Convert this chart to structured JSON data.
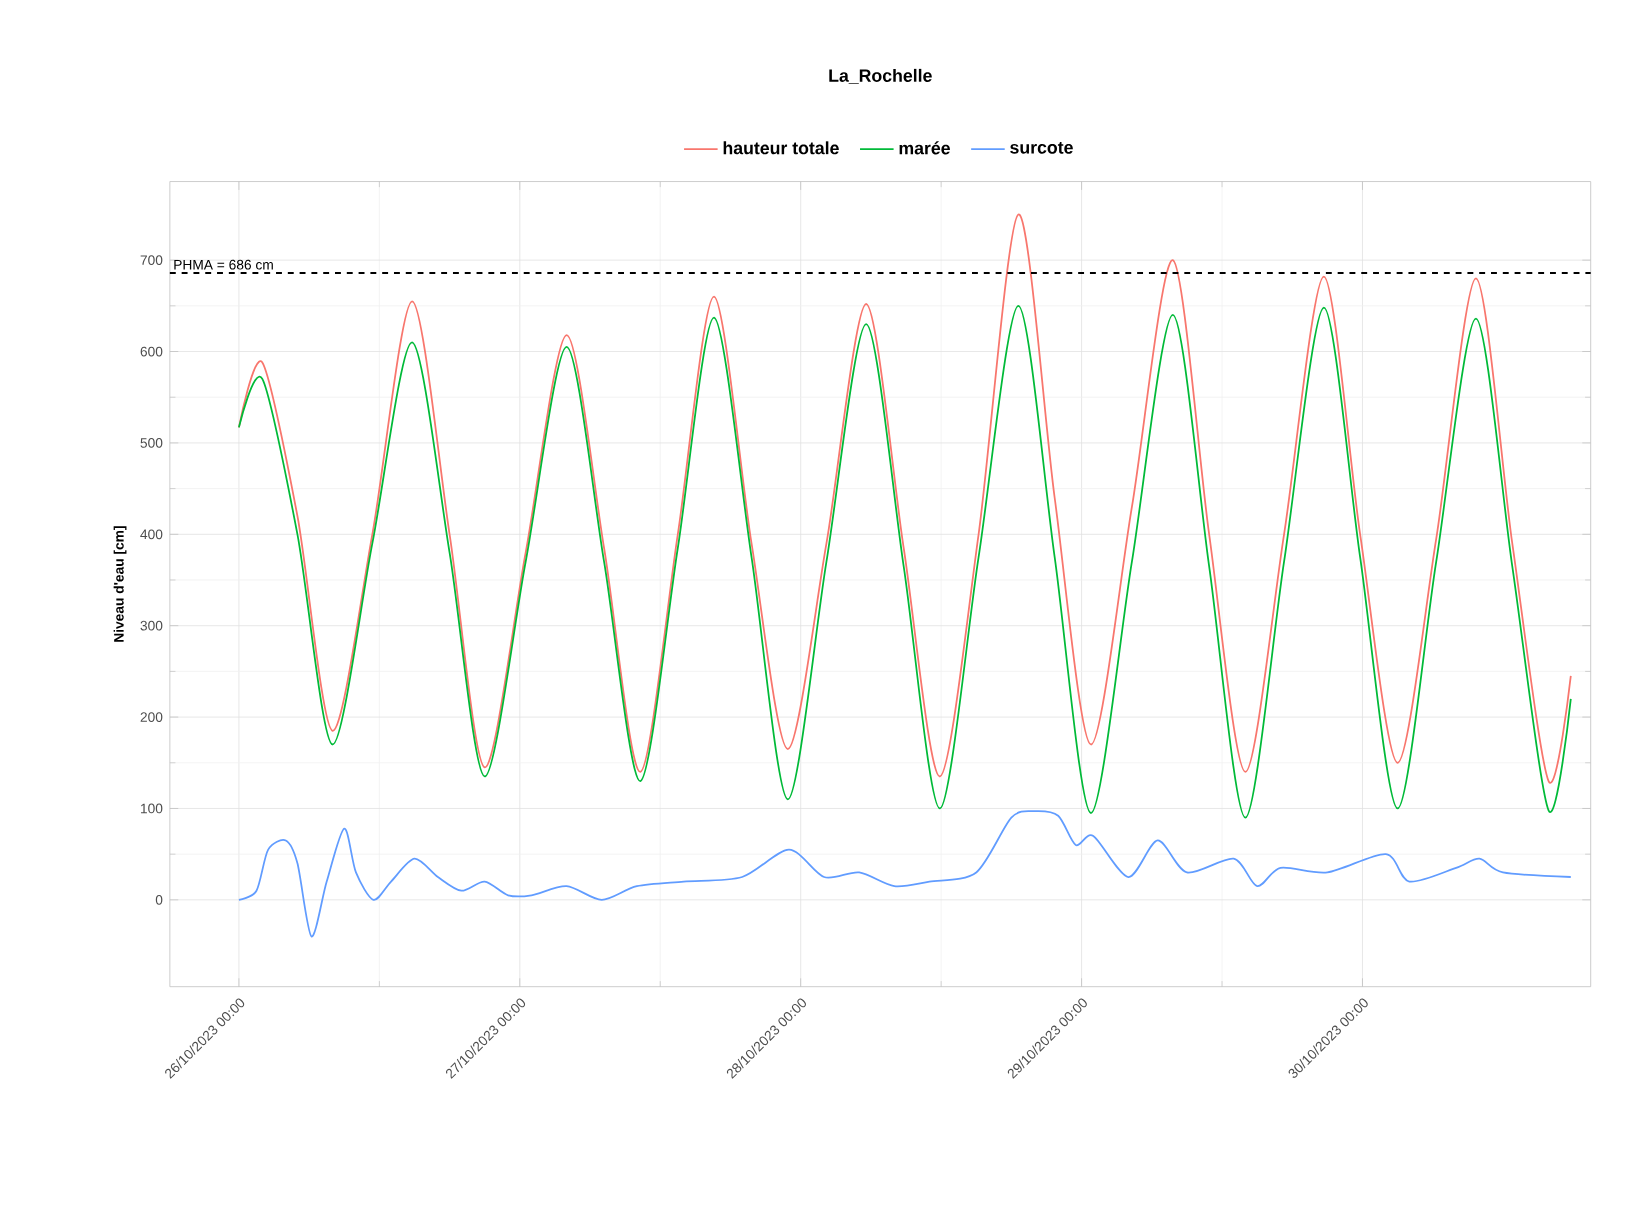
{
  "chart_data": {
    "type": "line",
    "title": "La_Rochelle",
    "ylabel": "Niveau d'eau [cm]",
    "xlim": [
      "2023-10-25T18:06",
      "2023-10-30T19:30"
    ],
    "ylim": [
      -95,
      786
    ],
    "xticks": [
      {
        "value": "2023-10-26T00:00",
        "label": "26/10/2023 00:00"
      },
      {
        "value": "2023-10-27T00:00",
        "label": "27/10/2023 00:00"
      },
      {
        "value": "2023-10-28T00:00",
        "label": "28/10/2023 00:00"
      },
      {
        "value": "2023-10-29T00:00",
        "label": "29/10/2023 00:00"
      },
      {
        "value": "2023-10-30T00:00",
        "label": "30/10/2023 00:00"
      }
    ],
    "yticks": [
      0,
      100,
      200,
      300,
      400,
      500,
      600,
      700
    ],
    "grid": true,
    "legend": "top",
    "marker": "none",
    "line_style": "solid",
    "ref_lines": [
      {
        "axis": "y",
        "value": 686,
        "label": "PHMA = 686 cm",
        "color": "#000000",
        "line_style": "dashed"
      }
    ],
    "series": [
      {
        "name": "hauteur totale",
        "color": "#f8766d",
        "x": [
          "2023-10-26T00:00",
          "2023-10-26T02:00",
          "2023-10-26T05:00",
          "2023-10-26T08:00",
          "2023-10-26T11:24",
          "2023-10-26T14:48",
          "2023-10-26T18:00",
          "2023-10-26T21:00",
          "2023-10-27T00:30",
          "2023-10-27T04:00",
          "2023-10-27T07:12",
          "2023-10-27T10:18",
          "2023-10-27T13:30",
          "2023-10-27T16:36",
          "2023-10-27T19:48",
          "2023-10-27T22:54",
          "2023-10-28T02:12",
          "2023-10-28T05:36",
          "2023-10-28T08:48",
          "2023-10-28T11:54",
          "2023-10-28T15:12",
          "2023-10-28T18:36",
          "2023-10-28T21:42",
          "2023-10-29T00:48",
          "2023-10-29T04:18",
          "2023-10-29T07:48",
          "2023-10-29T10:54",
          "2023-10-29T14:00",
          "2023-10-29T17:18",
          "2023-10-29T20:42",
          "2023-10-29T23:48",
          "2023-10-30T03:00",
          "2023-10-30T06:18",
          "2023-10-30T09:42",
          "2023-10-30T12:48",
          "2023-10-30T15:54",
          "2023-10-30T17:48"
        ],
        "values": [
          517,
          588,
          420,
          185,
          400,
          655,
          400,
          145,
          380,
          618,
          385,
          140,
          400,
          660,
          390,
          165,
          390,
          652,
          385,
          135,
          400,
          750,
          440,
          170,
          430,
          700,
          400,
          140,
          400,
          682,
          400,
          150,
          395,
          680,
          390,
          130,
          245
        ]
      },
      {
        "name": "marée",
        "color": "#00ba38",
        "x": [
          "2023-10-26T00:00",
          "2023-10-26T02:00",
          "2023-10-26T05:00",
          "2023-10-26T08:00",
          "2023-10-26T11:24",
          "2023-10-26T14:48",
          "2023-10-26T18:00",
          "2023-10-26T21:00",
          "2023-10-27T00:30",
          "2023-10-27T04:00",
          "2023-10-27T07:12",
          "2023-10-27T10:18",
          "2023-10-27T13:30",
          "2023-10-27T16:36",
          "2023-10-27T19:48",
          "2023-10-27T22:54",
          "2023-10-28T02:12",
          "2023-10-28T05:36",
          "2023-10-28T08:48",
          "2023-10-28T11:54",
          "2023-10-28T15:12",
          "2023-10-28T18:36",
          "2023-10-28T21:42",
          "2023-10-29T00:48",
          "2023-10-29T04:18",
          "2023-10-29T07:48",
          "2023-10-29T10:54",
          "2023-10-29T14:00",
          "2023-10-29T17:18",
          "2023-10-29T20:42",
          "2023-10-29T23:48",
          "2023-10-30T03:00",
          "2023-10-30T06:18",
          "2023-10-30T09:42",
          "2023-10-30T12:48",
          "2023-10-30T15:54",
          "2023-10-30T17:48"
        ],
        "values": [
          517,
          570,
          400,
          170,
          390,
          610,
          380,
          135,
          370,
          605,
          370,
          130,
          385,
          637,
          375,
          110,
          370,
          630,
          365,
          100,
          375,
          650,
          375,
          95,
          370,
          640,
          365,
          90,
          370,
          648,
          375,
          100,
          370,
          636,
          365,
          98,
          220
        ]
      },
      {
        "name": "surcote",
        "color": "#619cff",
        "x": [
          "2023-10-26T00:00",
          "2023-10-26T01:30",
          "2023-10-26T02:30",
          "2023-10-26T04:00",
          "2023-10-26T05:00",
          "2023-10-26T06:12",
          "2023-10-26T07:30",
          "2023-10-26T09:00",
          "2023-10-26T10:00",
          "2023-10-26T11:30",
          "2023-10-26T13:00",
          "2023-10-26T15:00",
          "2023-10-26T17:00",
          "2023-10-26T19:00",
          "2023-10-26T21:00",
          "2023-10-26T23:00",
          "2023-10-27T01:00",
          "2023-10-27T04:00",
          "2023-10-27T07:00",
          "2023-10-27T10:00",
          "2023-10-27T14:00",
          "2023-10-27T19:00",
          "2023-10-27T23:00",
          "2023-10-28T02:00",
          "2023-10-28T05:00",
          "2023-10-28T08:00",
          "2023-10-28T11:00",
          "2023-10-28T15:00",
          "2023-10-28T18:00",
          "2023-10-28T20:00",
          "2023-10-28T22:00",
          "2023-10-28T23:30",
          "2023-10-29T01:00",
          "2023-10-29T04:00",
          "2023-10-29T06:30",
          "2023-10-29T09:00",
          "2023-10-29T13:00",
          "2023-10-29T15:00",
          "2023-10-29T17:00",
          "2023-10-29T21:00",
          "2023-10-30T02:00",
          "2023-10-30T04:00",
          "2023-10-30T08:00",
          "2023-10-30T10:00",
          "2023-10-30T12:00",
          "2023-10-30T17:48"
        ],
        "values": [
          0,
          10,
          55,
          65,
          40,
          -40,
          20,
          78,
          30,
          0,
          20,
          45,
          25,
          10,
          20,
          5,
          5,
          15,
          0,
          15,
          20,
          25,
          55,
          25,
          30,
          15,
          20,
          30,
          90,
          97,
          92,
          60,
          70,
          25,
          65,
          30,
          45,
          15,
          35,
          30,
          50,
          20,
          35,
          45,
          30,
          25
        ]
      }
    ]
  }
}
